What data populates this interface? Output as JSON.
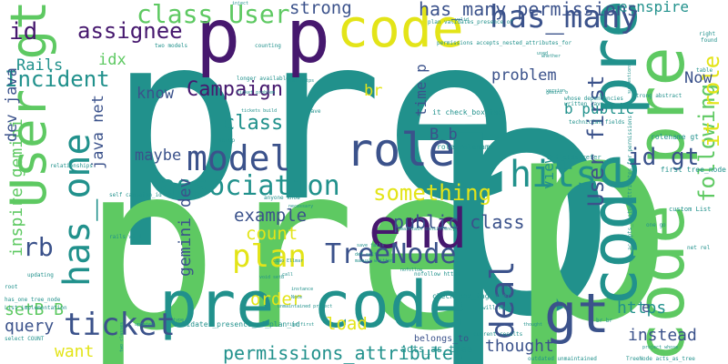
{
  "colors": {
    "purple": "#46186e",
    "indigo": "#3b528b",
    "teal": "#21918c",
    "green": "#5ec962",
    "lime": "#a0da39",
    "yellow": "#e3e418",
    "blue": "#31688e"
  },
  "words": [
    {
      "text": "pre",
      "color": "teal",
      "weight": 100
    },
    {
      "text": "pre",
      "color": "green",
      "weight": 98
    },
    {
      "text": "p",
      "color": "teal",
      "weight": 96
    },
    {
      "text": "p",
      "color": "green",
      "weight": 95
    },
    {
      "text": "p p",
      "color": "purple",
      "weight": 80
    },
    {
      "text": "code",
      "color": "yellow",
      "weight": 70
    },
    {
      "text": "pre code",
      "color": "teal",
      "weight": 68
    },
    {
      "text": "code pre",
      "color": "teal",
      "weight": 66
    },
    {
      "text": "code pre",
      "color": "green",
      "weight": 64
    },
    {
      "text": "end",
      "color": "purple",
      "weight": 62
    },
    {
      "text": "User gt",
      "color": "green",
      "weight": 60
    },
    {
      "text": "gt",
      "color": "indigo",
      "weight": 55
    },
    {
      "text": "hits",
      "color": "teal",
      "weight": 52
    },
    {
      "text": "role",
      "color": "indigo",
      "weight": 50
    },
    {
      "text": "model",
      "color": "indigo",
      "weight": 48
    },
    {
      "text": "has_many",
      "color": "indigo",
      "weight": 46
    },
    {
      "text": "has_one",
      "color": "teal",
      "weight": 45
    },
    {
      "text": "association",
      "color": "teal",
      "weight": 44
    },
    {
      "text": "plan",
      "color": "yellow",
      "weight": 42
    },
    {
      "text": "ticket",
      "color": "indigo",
      "weight": 40
    },
    {
      "text": "deal",
      "color": "indigo",
      "weight": 39
    },
    {
      "text": "User first",
      "color": "indigo",
      "weight": 38
    },
    {
      "text": "TreeNode",
      "color": "indigo",
      "weight": 37
    },
    {
      "text": "something",
      "color": "yellow",
      "weight": 36
    },
    {
      "text": "class User",
      "color": "green",
      "weight": 35
    },
    {
      "text": "Campaign",
      "color": "purple",
      "weight": 34
    },
    {
      "text": "Incident",
      "color": "teal",
      "weight": 33
    },
    {
      "text": "assignee",
      "color": "purple",
      "weight": 32
    },
    {
      "text": "id gt",
      "color": "indigo",
      "weight": 31
    },
    {
      "text": "class",
      "color": "teal",
      "weight": 30
    },
    {
      "text": "following",
      "color": "green",
      "weight": 30
    },
    {
      "text": "it role",
      "color": "yellow",
      "weight": 29
    },
    {
      "text": "id",
      "color": "purple",
      "weight": 28
    },
    {
      "text": "rb",
      "color": "indigo",
      "weight": 28
    },
    {
      "text": "has_many permissions",
      "color": "indigo",
      "weight": 20
    },
    {
      "text": "permissions_attributes",
      "color": "teal",
      "weight": 20
    },
    {
      "text": "public class",
      "color": "indigo",
      "weight": 20
    },
    {
      "text": "gemini dev",
      "color": "indigo",
      "weight": 18
    },
    {
      "text": "strong",
      "color": "indigo",
      "weight": 19
    },
    {
      "text": "example",
      "color": "indigo",
      "weight": 19
    },
    {
      "text": "count",
      "color": "yellow",
      "weight": 19
    },
    {
      "text": "order",
      "color": "yellow",
      "weight": 19
    },
    {
      "text": "load",
      "color": "yellow",
      "weight": 19
    },
    {
      "text": "thought",
      "color": "indigo",
      "weight": 18
    },
    {
      "text": "instead",
      "color": "indigo",
      "weight": 18
    },
    {
      "text": "https",
      "color": "teal",
      "weight": 18
    },
    {
      "text": "want",
      "color": "yellow",
      "weight": 18
    },
    {
      "text": "query",
      "color": "indigo",
      "weight": 18
    },
    {
      "text": "setB B",
      "color": "green",
      "weight": 18
    },
    {
      "text": "inspire gemini",
      "color": "green",
      "weight": 18
    },
    {
      "text": "dev java",
      "color": "indigo",
      "weight": 17
    },
    {
      "text": "java net",
      "color": "indigo",
      "weight": 17
    },
    {
      "text": "maybe",
      "color": "indigo",
      "weight": 17
    },
    {
      "text": "know",
      "color": "indigo",
      "weight": 17
    },
    {
      "text": "Rails",
      "color": "teal",
      "weight": 17
    },
    {
      "text": "idx",
      "color": "green",
      "weight": 17
    },
    {
      "text": "Now",
      "color": "indigo",
      "weight": 17
    },
    {
      "text": "problem",
      "color": "indigo",
      "weight": 17
    },
    {
      "text": "br",
      "color": "yellow",
      "weight": 17
    },
    {
      "text": "B b",
      "color": "indigo",
      "weight": 17
    },
    {
      "text": "time p",
      "color": "indigo",
      "weight": 16
    },
    {
      "text": "view",
      "color": "teal",
      "weight": 16
    },
    {
      "text": "b public",
      "color": "teal",
      "weight": 16
    },
    {
      "text": "e nspire",
      "color": "teal",
      "weight": 16
    },
    {
      "text": "e",
      "color": "indigo",
      "weight": 16
    },
    {
      "text": "acts_as_tree",
      "color": "teal",
      "weight": 10
    },
    {
      "text": "belongs_to",
      "color": "indigo",
      "weight": 10
    },
    {
      "text": "first tree_node",
      "color": "teal",
      "weight": 8
    },
    {
      "text": "validates_presence_of_plan_id",
      "color": "teal",
      "weight": 8
    },
    {
      "text": "check_box_tag user",
      "color": "teal",
      "weight": 8
    },
    {
      "text": "it check_box_tag",
      "color": "teal",
      "weight": 8
    },
    {
      "text": "role rolename",
      "color": "teal",
      "weight": 8
    },
    {
      "text": "rolename gt",
      "color": "teal",
      "weight": 8
    },
    {
      "text": "fields refer",
      "color": "teal",
      "weight": 7
    },
    {
      "text": "custom List",
      "color": "teal",
      "weight": 7
    },
    {
      "text": "permissions accepts_nested_attributes_for",
      "color": "teal",
      "weight": 6
    },
    {
      "text": "plan validates_presence_of",
      "color": "teal",
      "weight": 6
    },
    {
      "text": "accepts_nested_attributes_for permissions",
      "color": "teal",
      "weight": 6
    },
    {
      "text": "TreeNode acts_as_tree",
      "color": "teal",
      "weight": 6
    },
    {
      "text": "has_one tree_node",
      "color": "teal",
      "weight": 6
    },
    {
      "text": "List implementation",
      "color": "teal",
      "weight": 6
    },
    {
      "text": "select COUNT",
      "color": "teal",
      "weight": 6
    },
    {
      "text": "longer available",
      "color": "teal",
      "weight": 6
    },
    {
      "text": "self campaign_id",
      "color": "teal",
      "weight": 6
    },
    {
      "text": "two models",
      "color": "teal",
      "weight": 6
    },
    {
      "text": "relationships",
      "color": "teal",
      "weight": 6
    },
    {
      "text": "outdated unmaintained",
      "color": "teal",
      "weight": 6
    },
    {
      "text": "current results",
      "color": "teal",
      "weight": 6
    },
    {
      "text": "will make",
      "color": "teal",
      "weight": 6
    },
    {
      "text": "rails will",
      "color": "teal",
      "weight": 6
    },
    {
      "text": "updating",
      "color": "teal",
      "weight": 6
    },
    {
      "text": "root",
      "color": "teal",
      "weight": 6
    },
    {
      "text": "anyone know",
      "color": "teal",
      "weight": 6
    },
    {
      "text": "save",
      "color": "teal",
      "weight": 6
    },
    {
      "text": "setup",
      "color": "teal",
      "weight": 6
    },
    {
      "text": "br br",
      "color": "teal",
      "weight": 6
    },
    {
      "text": "one go",
      "color": "teal",
      "weight": 6
    },
    {
      "text": "net rel",
      "color": "teal",
      "weight": 6
    },
    {
      "text": "table",
      "color": "teal",
      "weight": 6
    },
    {
      "text": "right",
      "color": "teal",
      "weight": 6
    },
    {
      "text": "found",
      "color": "teal",
      "weight": 6
    },
    {
      "text": "technician fields",
      "color": "teal",
      "weight": 6
    },
    {
      "text": "written java",
      "color": "teal",
      "weight": 6
    },
    {
      "text": "nofollow https",
      "color": "teal",
      "weight": 6
    },
    {
      "text": "whose dependencies",
      "color": "teal",
      "weight": 6
    },
    {
      "text": "counting",
      "color": "teal",
      "weight": 6
    },
    {
      "text": "strong abstract",
      "color": "teal",
      "weight": 6
    },
    {
      "text": "inject",
      "color": "teal",
      "weight": 5
    },
    {
      "text": "valid",
      "color": "teal",
      "weight": 5
    },
    {
      "text": "used",
      "color": "teal",
      "weight": 5
    },
    {
      "text": "suggestions",
      "color": "teal",
      "weight": 5
    },
    {
      "text": "gemini b",
      "color": "teal",
      "weight": 5
    },
    {
      "text": "version",
      "color": "teal",
      "weight": 5
    },
    {
      "text": "thought",
      "color": "teal",
      "weight": 5
    },
    {
      "text": "nofollow",
      "color": "teal",
      "weight": 5
    },
    {
      "text": "whether",
      "color": "teal",
      "weight": 5
    },
    {
      "text": "maintain consistency",
      "color": "teal",
      "weight": 5
    },
    {
      "text": "ciao Ellmar",
      "color": "teal",
      "weight": 5
    },
    {
      "text": "manual written",
      "color": "teal",
      "weight": 5
    },
    {
      "text": "def self",
      "color": "teal",
      "weight": 5
    },
    {
      "text": "save fails",
      "color": "teal",
      "weight": 5
    },
    {
      "text": "void setB",
      "color": "teal",
      "weight": 5
    },
    {
      "text": "instance",
      "color": "teal",
      "weight": 5
    },
    {
      "text": "unmaintained project",
      "color": "teal",
      "weight": 5
    },
    {
      "text": "find first",
      "color": "teal",
      "weight": 5
    },
    {
      "text": "project whose",
      "color": "teal",
      "weight": 5
    },
    {
      "text": "ticket problem",
      "color": "teal",
      "weight": 5
    },
    {
      "text": "tickets build",
      "color": "teal",
      "weight": 5
    },
    {
      "text": "href https",
      "color": "teal",
      "weight": 5
    },
    {
      "text": "Note",
      "color": "teal",
      "weight": 5
    },
    {
      "text": "call",
      "color": "teal",
      "weight": 5
    },
    {
      "text": "necessary",
      "color": "teal",
      "weight": 5
    },
    {
      "text": "type",
      "color": "teal",
      "weight": 5
    },
    {
      "text": "updated",
      "color": "teal",
      "weight": 5
    },
    {
      "text": "two classes",
      "color": "teal",
      "weight": 5
    }
  ]
}
